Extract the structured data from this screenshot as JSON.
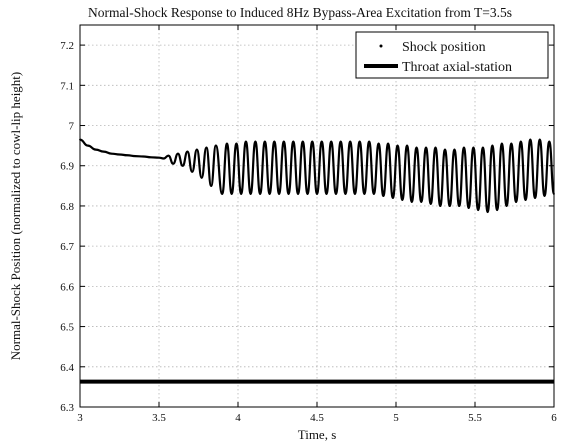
{
  "chart_data": {
    "type": "line",
    "title": "Normal-Shock Response to Induced 8Hz Bypass-Area Excitation from T=3.5s",
    "xlabel": "Time, s",
    "ylabel": "Normal-Shock Position (normalized to cowl-lip height)",
    "xlim": [
      3,
      6
    ],
    "ylim": [
      6.3,
      7.25
    ],
    "x_ticks": [
      3,
      3.5,
      4,
      4.5,
      5,
      5.5,
      6
    ],
    "x_tick_labels": [
      "3",
      "3.5",
      "4",
      "4.5",
      "5",
      "5.5",
      "6"
    ],
    "y_ticks": [
      6.3,
      6.4,
      6.5,
      6.6,
      6.7,
      6.8,
      6.9,
      7,
      7.1,
      7.2
    ],
    "y_tick_labels": [
      "6.3",
      "6.4",
      "6.5",
      "6.6",
      "6.7",
      "6.8",
      "6.9",
      "7",
      "7.1",
      "7.2"
    ],
    "grid": true,
    "legend_position": "top-right",
    "series": [
      {
        "name": "Shock position",
        "style": "dotted",
        "color": "#000000",
        "x": [
          3.0,
          3.05,
          3.1,
          3.15,
          3.2,
          3.25,
          3.3,
          3.35,
          3.4,
          3.45,
          3.5,
          3.53,
          3.56,
          3.59,
          3.62,
          3.65,
          3.68,
          3.71,
          3.74,
          3.77,
          3.8,
          3.83,
          3.86,
          3.9,
          3.93,
          3.96,
          3.99,
          4.02,
          4.05,
          4.08,
          4.11,
          4.14,
          4.17,
          4.2,
          4.23,
          4.26,
          4.29,
          4.32,
          4.35,
          4.38,
          4.41,
          4.44,
          4.47,
          4.5,
          4.53,
          4.56,
          4.59,
          4.62,
          4.65,
          4.68,
          4.71,
          4.74,
          4.77,
          4.8,
          4.83,
          4.86,
          4.89,
          4.92,
          4.95,
          4.98,
          5.01,
          5.04,
          5.07,
          5.1,
          5.13,
          5.16,
          5.19,
          5.22,
          5.25,
          5.28,
          5.31,
          5.34,
          5.37,
          5.4,
          5.43,
          5.46,
          5.49,
          5.52,
          5.55,
          5.58,
          5.61,
          5.64,
          5.67,
          5.7,
          5.73,
          5.76,
          5.79,
          5.82,
          5.85,
          5.88,
          5.91,
          5.94,
          5.97,
          6.0
        ],
        "values": [
          6.965,
          6.95,
          6.94,
          6.935,
          6.93,
          6.928,
          6.926,
          6.924,
          6.923,
          6.921,
          6.92,
          6.918,
          6.925,
          6.905,
          6.93,
          6.9,
          6.935,
          6.885,
          6.94,
          6.87,
          6.945,
          6.85,
          6.95,
          6.83,
          6.955,
          6.83,
          6.955,
          6.83,
          6.96,
          6.83,
          6.96,
          6.83,
          6.96,
          6.83,
          6.96,
          6.83,
          6.96,
          6.83,
          6.96,
          6.83,
          6.96,
          6.83,
          6.96,
          6.83,
          6.96,
          6.83,
          6.96,
          6.83,
          6.96,
          6.83,
          6.96,
          6.83,
          6.96,
          6.83,
          6.96,
          6.83,
          6.955,
          6.825,
          6.955,
          6.82,
          6.95,
          6.815,
          6.95,
          6.81,
          6.945,
          6.81,
          6.945,
          6.805,
          6.945,
          6.8,
          6.94,
          6.8,
          6.94,
          6.8,
          6.945,
          6.795,
          6.945,
          6.79,
          6.945,
          6.785,
          6.95,
          6.79,
          6.955,
          6.8,
          6.955,
          6.81,
          6.96,
          6.815,
          6.965,
          6.82,
          6.965,
          6.825,
          6.96,
          6.83
        ]
      },
      {
        "name": "Throat axial-station",
        "style": "solid-thick",
        "color": "#000000",
        "x": [
          3,
          6
        ],
        "values": [
          6.363,
          6.363
        ]
      }
    ]
  }
}
